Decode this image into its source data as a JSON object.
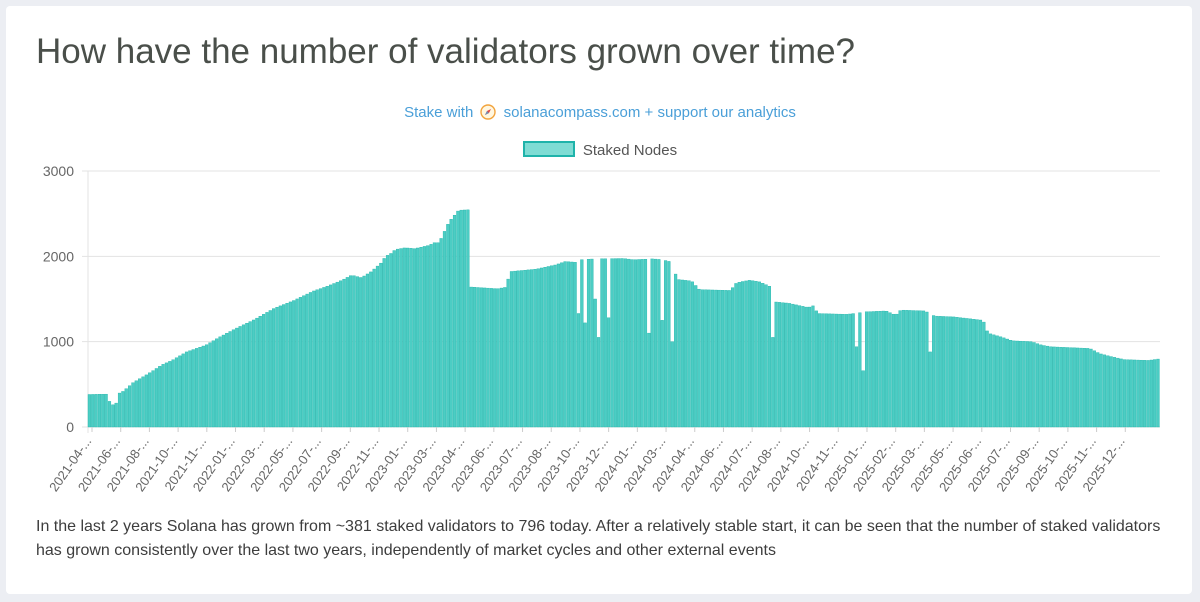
{
  "header": {
    "title": "How have the number of validators grown over time?",
    "stake_prefix": "Stake with",
    "compass_icon": "compass-icon",
    "stake_suffix": "solanacompass.com + support our analytics"
  },
  "description": "In the last 2 years Solana has grown from ~381 staked validators to 796 today. After a relatively stable start, it can be seen that the number of staked validators has grown consistently over the last two years, independently of market cycles and other external events",
  "colors": {
    "bar_fill": "#4ccdc4",
    "bar_stroke": "#22b5ab",
    "grid": "#e3e3e3",
    "title": "#4a4f4a",
    "link": "#4a9fd8"
  },
  "chart_data": {
    "type": "bar",
    "legend": [
      "Staked Nodes"
    ],
    "legend_position": "top",
    "grid": true,
    "ylim": [
      0,
      3000
    ],
    "yticks": [
      0,
      1000,
      2000,
      3000
    ],
    "xlabel": "",
    "ylabel": "",
    "x_tick_labels": [
      "2021-04-...",
      "2021-06-...",
      "2021-08-...",
      "2021-10-...",
      "2021-11-...",
      "2022-01-...",
      "2022-03-...",
      "2022-05-...",
      "2022-07-...",
      "2022-09-...",
      "2022-11-...",
      "2023-01-...",
      "2023-03-...",
      "2023-04-...",
      "2023-06-...",
      "2023-07-...",
      "2023-08-...",
      "2023-10-...",
      "2023-12-...",
      "2024-01-...",
      "2024-03-...",
      "2024-04-...",
      "2024-06-...",
      "2024-07-...",
      "2024-08-...",
      "2024-10-...",
      "2024-11-...",
      "2025-01-...",
      "2025-02-...",
      "2025-03-...",
      "2025-05-...",
      "2025-06-...",
      "2025-07-...",
      "2025-09-...",
      "2025-10-...",
      "2025-11-...",
      "2025-12-..."
    ],
    "series": [
      {
        "name": "Staked Nodes",
        "curve": [
          [
            0,
            381
          ],
          [
            0.019,
            385
          ],
          [
            0.023,
            370
          ],
          [
            0.028,
            390
          ],
          [
            0.032,
            400
          ],
          [
            0.035,
            420
          ],
          [
            0.045,
            520
          ],
          [
            0.06,
            620
          ],
          [
            0.075,
            730
          ],
          [
            0.085,
            780
          ],
          [
            0.1,
            880
          ],
          [
            0.12,
            960
          ],
          [
            0.135,
            1060
          ],
          [
            0.15,
            1150
          ],
          [
            0.17,
            1260
          ],
          [
            0.19,
            1390
          ],
          [
            0.21,
            1480
          ],
          [
            0.23,
            1590
          ],
          [
            0.245,
            1650
          ],
          [
            0.26,
            1720
          ],
          [
            0.27,
            1780
          ],
          [
            0.28,
            1750
          ],
          [
            0.29,
            1820
          ],
          [
            0.3,
            1920
          ],
          [
            0.305,
            2000
          ],
          [
            0.31,
            2030
          ],
          [
            0.315,
            2080
          ],
          [
            0.325,
            2100
          ],
          [
            0.335,
            2090
          ],
          [
            0.35,
            2130
          ],
          [
            0.355,
            2160
          ],
          [
            0.36,
            2160
          ],
          [
            0.37,
            2400
          ],
          [
            0.38,
            2540
          ],
          [
            0.39,
            2545
          ],
          [
            0.392,
            2520
          ],
          [
            0.393,
            1640
          ],
          [
            0.42,
            1620
          ],
          [
            0.43,
            1640
          ],
          [
            0.432,
            1820
          ],
          [
            0.46,
            1850
          ],
          [
            0.48,
            1900
          ],
          [
            0.49,
            1940
          ],
          [
            0.5,
            1930
          ],
          [
            0.505,
            1960
          ],
          [
            0.52,
            1970
          ],
          [
            0.55,
            1975
          ],
          [
            0.56,
            1960
          ],
          [
            0.58,
            1970
          ],
          [
            0.59,
            1960
          ],
          [
            0.6,
            1930
          ],
          [
            0.605,
            1730
          ],
          [
            0.62,
            1710
          ],
          [
            0.628,
            1610
          ],
          [
            0.66,
            1600
          ],
          [
            0.665,
            1680
          ],
          [
            0.67,
            1700
          ],
          [
            0.68,
            1720
          ],
          [
            0.69,
            1700
          ],
          [
            0.7,
            1650
          ],
          [
            0.702,
            1470
          ],
          [
            0.72,
            1450
          ],
          [
            0.74,
            1400
          ],
          [
            0.745,
            1420
          ],
          [
            0.75,
            1330
          ],
          [
            0.78,
            1320
          ],
          [
            0.8,
            1350
          ],
          [
            0.82,
            1360
          ],
          [
            0.83,
            1310
          ],
          [
            0.835,
            1370
          ],
          [
            0.86,
            1360
          ],
          [
            0.87,
            1300
          ],
          [
            0.89,
            1290
          ],
          [
            0.92,
            1250
          ],
          [
            0.925,
            1100
          ],
          [
            0.94,
            1050
          ],
          [
            0.95,
            1010
          ],
          [
            0.97,
            1000
          ],
          [
            0.98,
            960
          ],
          [
            0.99,
            940
          ],
          [
            1.03,
            920
          ],
          [
            1.04,
            860
          ],
          [
            1.05,
            830
          ],
          [
            1.065,
            790
          ],
          [
            1.09,
            780
          ],
          [
            1.1,
            796
          ]
        ],
        "drops": [
          [
            0.02,
            300
          ],
          [
            0.0235,
            260
          ],
          [
            0.0275,
            280
          ],
          [
            0.505,
            1330
          ],
          [
            0.51,
            1220
          ],
          [
            0.52,
            1500
          ],
          [
            0.525,
            1050
          ],
          [
            0.535,
            1280
          ],
          [
            0.575,
            1100
          ],
          [
            0.59,
            1250
          ],
          [
            0.6,
            1000
          ],
          [
            0.705,
            1050
          ],
          [
            0.79,
            940
          ],
          [
            0.795,
            660
          ],
          [
            0.865,
            880
          ]
        ]
      }
    ]
  }
}
